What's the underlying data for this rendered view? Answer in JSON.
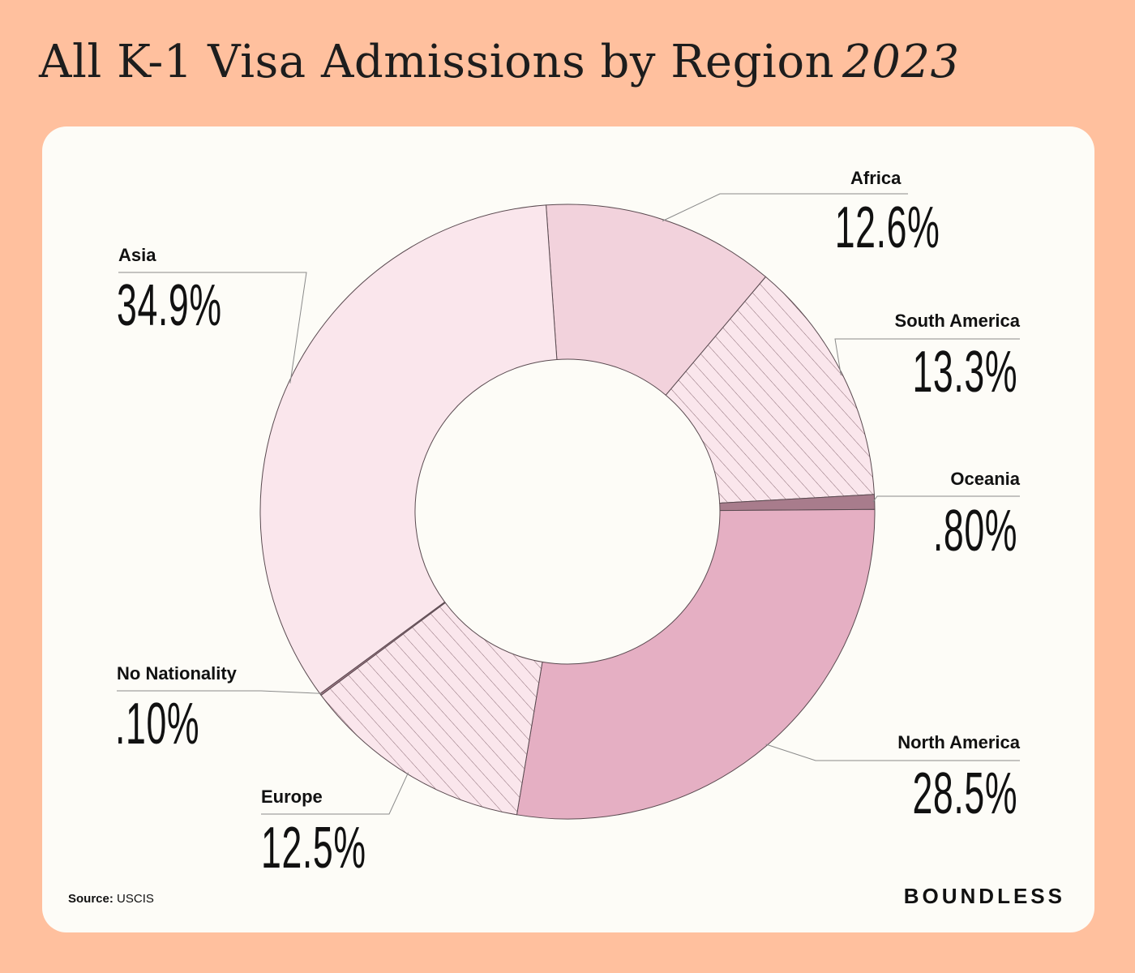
{
  "header": {
    "title": "All K-1 Visa Admissions by Region",
    "year": "2023"
  },
  "colors": {
    "background": "#FFC09E",
    "card": "#FDFCF7",
    "asia": "#FAE6EC",
    "africa": "#F2D2DC",
    "south_america": "#FAE6EC",
    "oceania": "#A87C8C",
    "north_america": "#E5AFC3",
    "europe": "#F2D2DC",
    "no_nationality": "#A87C8C"
  },
  "chart_data": {
    "type": "pie",
    "variant": "donut",
    "title": "All K-1 Visa Admissions by Region 2023",
    "categories": [
      "Africa",
      "South America",
      "Oceania",
      "North America",
      "Europe",
      "No Nationality",
      "Asia"
    ],
    "values": [
      12.6,
      13.3,
      0.8,
      28.5,
      12.5,
      0.1,
      34.9
    ],
    "value_labels": [
      "12.6%",
      "13.3%",
      ".80%",
      "28.5%",
      "12.5%",
      ".10%",
      "34.9%"
    ],
    "hatched": [
      false,
      true,
      false,
      false,
      true,
      false,
      false
    ],
    "legend": "none"
  },
  "footer": {
    "source_label": "Source:",
    "source_value": "USCIS",
    "brand": "BOUNDLESS"
  }
}
